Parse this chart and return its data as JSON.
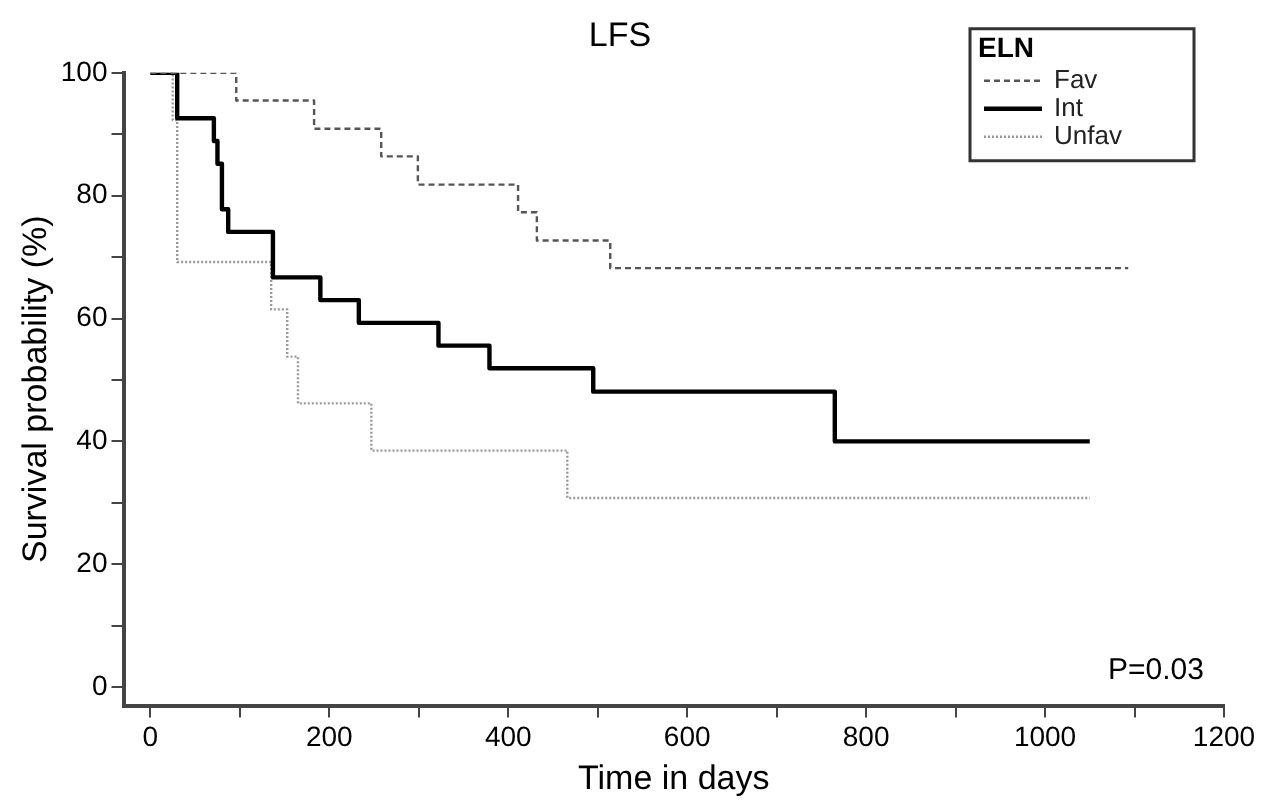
{
  "chart_data": {
    "type": "step",
    "title": "LFS",
    "xlabel": "Time in days",
    "ylabel": "Survival probability (%)",
    "legend_title": "ELN",
    "legend": "top right",
    "grid": false,
    "marker": "none",
    "xlim": [
      -30,
      1200
    ],
    "xticks": [
      0,
      {
        "value": 100,
        "label": null
      },
      200,
      {
        "value": 300,
        "label": null
      },
      400,
      {
        "value": 500,
        "label": null
      },
      600,
      {
        "value": 700,
        "label": null
      },
      800,
      {
        "value": 900,
        "label": null
      },
      1000,
      {
        "value": 1100,
        "label": null
      },
      1200
    ],
    "ylim": [
      -3,
      100
    ],
    "yticks": [
      0,
      {
        "value": 10,
        "label": null
      },
      20,
      {
        "value": 30,
        "label": null
      },
      40,
      {
        "value": 50,
        "label": null
      },
      60,
      {
        "value": 70,
        "label": null
      },
      80,
      {
        "value": 90,
        "label": null
      },
      100
    ],
    "series": [
      {
        "name": "Fav",
        "color": "#555555",
        "line_style": "dashed",
        "x": [
          0,
          96,
          183,
          258,
          299,
          411,
          432,
          514,
          1093
        ],
        "values": [
          100,
          95.5,
          90.9,
          86.4,
          81.8,
          77.3,
          72.7,
          68.2,
          68.2
        ]
      },
      {
        "name": "Int",
        "color": "#000000",
        "line_style": "solid",
        "x": [
          0,
          30,
          71,
          75,
          80,
          87,
          137,
          190,
          233,
          322,
          379,
          495,
          765,
          1050
        ],
        "values": [
          100,
          92.6,
          88.9,
          85.2,
          77.8,
          74.1,
          66.7,
          63.0,
          59.3,
          55.6,
          51.9,
          48.1,
          40.0,
          40.0
        ]
      },
      {
        "name": "Unfav",
        "color": "#999999",
        "line_style": "dotted",
        "x": [
          0,
          25,
          30,
          135,
          153,
          165,
          247,
          466,
          1050
        ],
        "values": [
          100,
          92.3,
          69.2,
          61.5,
          53.8,
          46.2,
          38.5,
          30.8,
          30.8
        ]
      }
    ],
    "annotations": [
      "P=0.03"
    ]
  }
}
